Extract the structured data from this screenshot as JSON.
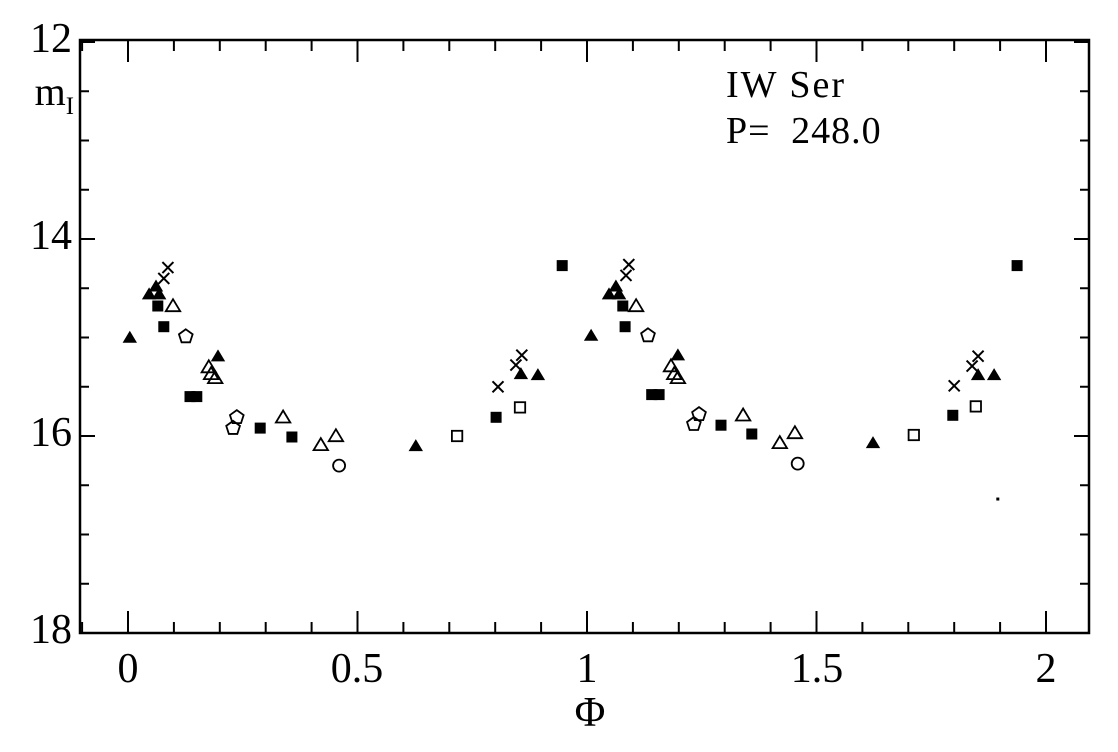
{
  "figure": {
    "star_name": "IW Ser",
    "period_label": "P= 248.0",
    "x_axis_label": "Φ",
    "y_axis_label_base": "m",
    "y_axis_label_sub": "I"
  },
  "chart_data": {
    "type": "scatter",
    "title": "IW Ser",
    "annotation": "P= 248.0",
    "xlabel": "Φ",
    "ylabel": "m_I",
    "x_range_shown": [
      -0.105,
      2.095
    ],
    "y_range_shown": [
      18,
      12
    ],
    "y_axis_inverted": true,
    "grid": false,
    "legend": false,
    "background_color": "#ffffff",
    "marker_color": "#000000",
    "x_major_ticks": [
      0,
      0.5,
      1,
      1.5,
      2
    ],
    "x_major_tick_labels": [
      "0",
      "0.5",
      "1",
      "1.5",
      "2"
    ],
    "x_minor_tick_step": 0.1,
    "y_major_ticks": [
      12,
      14,
      16,
      18
    ],
    "y_major_tick_labels": [
      "12",
      "14",
      "16",
      "18"
    ],
    "y_minor_tick_step": 0.5,
    "series": [
      {
        "name": "filled-triangle",
        "marker": "filled-triangle",
        "points": [
          [
            0.004,
            15.0
          ],
          [
            0.046,
            14.56
          ],
          [
            0.061,
            14.48
          ],
          [
            0.068,
            14.56
          ],
          [
            0.196,
            15.19
          ],
          [
            0.627,
            16.1
          ],
          [
            0.856,
            15.37
          ],
          [
            0.893,
            15.38
          ],
          [
            1.009,
            14.98
          ],
          [
            1.048,
            14.56
          ],
          [
            1.063,
            14.48
          ],
          [
            1.07,
            14.56
          ],
          [
            1.198,
            15.18
          ],
          [
            1.623,
            16.07
          ],
          [
            1.852,
            15.38
          ],
          [
            1.887,
            15.38
          ]
        ]
      },
      {
        "name": "open-triangle",
        "marker": "open-triangle",
        "points": [
          [
            0.098,
            14.68
          ],
          [
            0.176,
            15.3
          ],
          [
            0.181,
            15.37
          ],
          [
            0.19,
            15.41
          ],
          [
            0.338,
            15.81
          ],
          [
            0.42,
            16.09
          ],
          [
            0.453,
            16.0
          ],
          [
            1.107,
            14.68
          ],
          [
            1.183,
            15.29
          ],
          [
            1.19,
            15.37
          ],
          [
            1.198,
            15.41
          ],
          [
            1.34,
            15.79
          ],
          [
            1.42,
            16.07
          ],
          [
            1.453,
            15.97
          ]
        ]
      },
      {
        "name": "filled-square",
        "marker": "filled-square",
        "points": [
          [
            0.065,
            14.68
          ],
          [
            0.078,
            14.89
          ],
          [
            0.135,
            15.6
          ],
          [
            0.15,
            15.6
          ],
          [
            0.288,
            15.92
          ],
          [
            0.357,
            16.01
          ],
          [
            0.802,
            15.81
          ],
          [
            0.946,
            14.27
          ],
          [
            1.078,
            14.68
          ],
          [
            1.083,
            14.89
          ],
          [
            1.141,
            15.58
          ],
          [
            1.157,
            15.58
          ],
          [
            1.292,
            15.89
          ],
          [
            1.359,
            15.98
          ],
          [
            1.797,
            15.79
          ],
          [
            1.937,
            14.27
          ]
        ]
      },
      {
        "name": "open-square",
        "marker": "open-square",
        "points": [
          [
            0.717,
            16.0
          ],
          [
            0.854,
            15.71
          ],
          [
            1.712,
            15.99
          ],
          [
            1.847,
            15.7
          ]
        ]
      },
      {
        "name": "open-pentagon",
        "marker": "open-pentagon",
        "points": [
          [
            0.126,
            14.99
          ],
          [
            0.229,
            15.92
          ],
          [
            0.237,
            15.81
          ],
          [
            1.133,
            14.98
          ],
          [
            1.233,
            15.88
          ],
          [
            1.244,
            15.78
          ]
        ]
      },
      {
        "name": "open-circle",
        "marker": "open-circle",
        "points": [
          [
            0.46,
            16.3
          ],
          [
            1.459,
            16.28
          ]
        ]
      },
      {
        "name": "cross",
        "marker": "cross",
        "points": [
          [
            0.078,
            14.4
          ],
          [
            0.087,
            14.29
          ],
          [
            0.806,
            15.5
          ],
          [
            0.845,
            15.28
          ],
          [
            0.858,
            15.18
          ],
          [
            1.085,
            14.37
          ],
          [
            1.091,
            14.26
          ],
          [
            1.8,
            15.49
          ],
          [
            1.839,
            15.29
          ],
          [
            1.852,
            15.19
          ]
        ]
      }
    ],
    "artifacts": [
      {
        "x": 1.895,
        "y": 16.64,
        "note": "tiny speck on scan"
      }
    ]
  }
}
